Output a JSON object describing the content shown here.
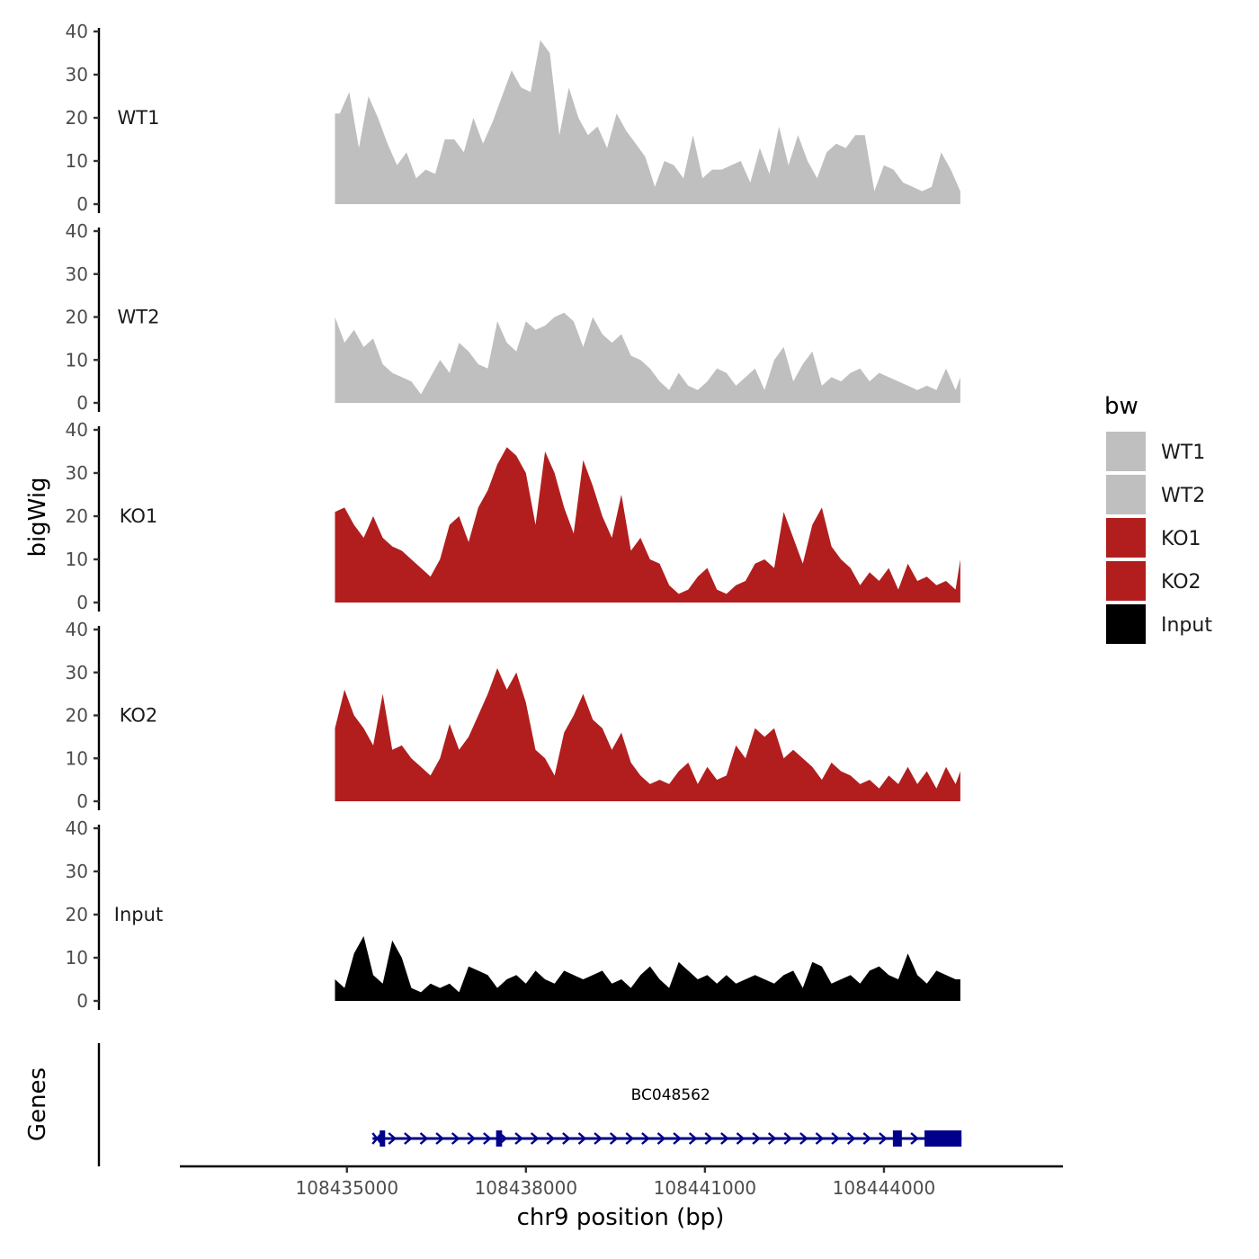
{
  "chart_data": {
    "type": "area",
    "xlabel": "chr9 position (bp)",
    "ylabel": "bigWig",
    "genes_label": "Genes",
    "xlim": [
      108432200,
      108447000
    ],
    "x_ticks": [
      108435000,
      108438000,
      108441000,
      108444000
    ],
    "x_tick_labels": [
      "108435000",
      "108438000",
      "108441000",
      "108444000"
    ],
    "y_range": [
      0,
      40
    ],
    "y_ticks": [
      0,
      10,
      20,
      30,
      40
    ],
    "y_tick_labels": [
      "0",
      "10",
      "20",
      "30",
      "40"
    ],
    "legend": {
      "title": "bw",
      "entries": [
        {
          "label": "WT1",
          "color": "#bfbfbf"
        },
        {
          "label": "WT2",
          "color": "#bfbfbf"
        },
        {
          "label": "KO1",
          "color": "#b21e1e"
        },
        {
          "label": "KO2",
          "color": "#b21e1e"
        },
        {
          "label": "Input",
          "color": "#000000"
        }
      ]
    },
    "series": [
      {
        "name": "WT1",
        "color": "#bfbfbf",
        "x": [
          108434800,
          108434880,
          108435040,
          108435200,
          108435360,
          108435520,
          108435680,
          108435840,
          108436000,
          108436160,
          108436320,
          108436480,
          108436640,
          108436800,
          108436960,
          108437120,
          108437280,
          108437440,
          108437600,
          108437760,
          108437920,
          108438080,
          108438240,
          108438400,
          108438560,
          108438720,
          108438880,
          108439040,
          108439200,
          108439360,
          108439520,
          108439680,
          108439840,
          108440000,
          108440160,
          108440320,
          108440480,
          108440640,
          108440800,
          108440960,
          108441120,
          108441280,
          108441440,
          108441600,
          108441760,
          108441920,
          108442080,
          108442240,
          108442400,
          108442560,
          108442720,
          108442880,
          108443040,
          108443200,
          108443360,
          108443520,
          108443680,
          108443840,
          108444000,
          108444160,
          108444320,
          108444480,
          108444640,
          108444800,
          108444960,
          108445120,
          108445280
        ],
        "values": [
          21,
          21,
          26,
          13,
          25,
          20,
          14,
          9,
          12,
          6,
          8,
          7,
          15,
          15,
          12,
          20,
          14,
          19,
          25,
          31,
          27,
          26,
          38,
          35,
          16,
          27,
          20,
          16,
          18,
          13,
          21,
          17,
          14,
          11,
          4,
          10,
          9,
          6,
          16,
          6,
          8,
          8,
          9,
          10,
          5,
          13,
          7,
          18,
          9,
          16,
          10,
          6,
          12,
          14,
          13,
          16,
          16,
          3,
          9,
          8,
          5,
          4,
          3,
          4,
          12,
          8,
          3
        ]
      },
      {
        "name": "WT2",
        "color": "#bfbfbf",
        "x": [
          108434800,
          108434960,
          108435120,
          108435280,
          108435440,
          108435600,
          108435760,
          108435920,
          108436080,
          108436240,
          108436400,
          108436560,
          108436720,
          108436880,
          108437040,
          108437200,
          108437360,
          108437520,
          108437680,
          108437840,
          108438000,
          108438160,
          108438320,
          108438480,
          108438640,
          108438800,
          108438960,
          108439120,
          108439280,
          108439440,
          108439600,
          108439760,
          108439920,
          108440080,
          108440240,
          108440400,
          108440560,
          108440720,
          108440880,
          108441040,
          108441200,
          108441360,
          108441520,
          108441680,
          108441840,
          108442000,
          108442160,
          108442320,
          108442480,
          108442640,
          108442800,
          108442960,
          108443120,
          108443280,
          108443440,
          108443600,
          108443760,
          108443920,
          108444080,
          108444240,
          108444400,
          108444560,
          108444720,
          108444880,
          108445040,
          108445200,
          108445280
        ],
        "values": [
          20,
          14,
          17,
          13,
          15,
          9,
          7,
          6,
          5,
          2,
          6,
          10,
          7,
          14,
          12,
          9,
          8,
          19,
          14,
          12,
          19,
          17,
          18,
          20,
          21,
          19,
          13,
          20,
          16,
          14,
          16,
          11,
          10,
          8,
          5,
          3,
          7,
          4,
          3,
          5,
          8,
          7,
          4,
          6,
          8,
          3,
          10,
          13,
          5,
          9,
          12,
          4,
          6,
          5,
          7,
          8,
          5,
          7,
          6,
          5,
          4,
          3,
          4,
          3,
          8,
          3,
          6
        ]
      },
      {
        "name": "KO1",
        "color": "#b21e1e",
        "x": [
          108434800,
          108434960,
          108435120,
          108435280,
          108435440,
          108435600,
          108435760,
          108435920,
          108436080,
          108436240,
          108436400,
          108436560,
          108436720,
          108436880,
          108437040,
          108437200,
          108437360,
          108437520,
          108437680,
          108437840,
          108438000,
          108438160,
          108438320,
          108438480,
          108438640,
          108438800,
          108438960,
          108439120,
          108439280,
          108439440,
          108439600,
          108439760,
          108439920,
          108440080,
          108440240,
          108440400,
          108440560,
          108440720,
          108440880,
          108441040,
          108441200,
          108441360,
          108441520,
          108441680,
          108441840,
          108442000,
          108442160,
          108442320,
          108442480,
          108442640,
          108442800,
          108442960,
          108443120,
          108443280,
          108443440,
          108443600,
          108443760,
          108443920,
          108444080,
          108444240,
          108444400,
          108444560,
          108444720,
          108444880,
          108445040,
          108445200,
          108445280
        ],
        "values": [
          21,
          22,
          18,
          15,
          20,
          15,
          13,
          12,
          10,
          8,
          6,
          10,
          18,
          20,
          14,
          22,
          26,
          32,
          36,
          34,
          30,
          18,
          35,
          30,
          22,
          16,
          33,
          27,
          20,
          15,
          25,
          12,
          15,
          10,
          9,
          4,
          2,
          3,
          6,
          8,
          3,
          2,
          4,
          5,
          9,
          10,
          8,
          21,
          15,
          9,
          18,
          22,
          13,
          10,
          8,
          4,
          7,
          5,
          8,
          3,
          9,
          5,
          6,
          4,
          5,
          3,
          10
        ]
      },
      {
        "name": "KO2",
        "color": "#b21e1e",
        "x": [
          108434800,
          108434960,
          108435120,
          108435280,
          108435440,
          108435600,
          108435760,
          108435920,
          108436080,
          108436240,
          108436400,
          108436560,
          108436720,
          108436880,
          108437040,
          108437200,
          108437360,
          108437520,
          108437680,
          108437840,
          108438000,
          108438160,
          108438320,
          108438480,
          108438640,
          108438800,
          108438960,
          108439120,
          108439280,
          108439440,
          108439600,
          108439760,
          108439920,
          108440080,
          108440240,
          108440400,
          108440560,
          108440720,
          108440880,
          108441040,
          108441200,
          108441360,
          108441520,
          108441680,
          108441840,
          108442000,
          108442160,
          108442320,
          108442480,
          108442640,
          108442800,
          108442960,
          108443120,
          108443280,
          108443440,
          108443600,
          108443760,
          108443920,
          108444080,
          108444240,
          108444400,
          108444560,
          108444720,
          108444880,
          108445040,
          108445200,
          108445280
        ],
        "values": [
          17,
          26,
          20,
          17,
          13,
          25,
          12,
          13,
          10,
          8,
          6,
          10,
          18,
          12,
          15,
          20,
          25,
          31,
          26,
          30,
          23,
          12,
          10,
          6,
          16,
          20,
          25,
          19,
          17,
          12,
          16,
          9,
          6,
          4,
          5,
          4,
          7,
          9,
          4,
          8,
          5,
          6,
          13,
          10,
          17,
          15,
          17,
          10,
          12,
          10,
          8,
          5,
          9,
          7,
          6,
          4,
          5,
          3,
          6,
          4,
          8,
          4,
          7,
          3,
          8,
          4,
          7
        ]
      },
      {
        "name": "Input",
        "color": "#000000",
        "x": [
          108434800,
          108434960,
          108435120,
          108435280,
          108435440,
          108435600,
          108435760,
          108435920,
          108436080,
          108436240,
          108436400,
          108436560,
          108436720,
          108436880,
          108437040,
          108437200,
          108437360,
          108437520,
          108437680,
          108437840,
          108438000,
          108438160,
          108438320,
          108438480,
          108438640,
          108438800,
          108438960,
          108439120,
          108439280,
          108439440,
          108439600,
          108439760,
          108439920,
          108440080,
          108440240,
          108440400,
          108440560,
          108440720,
          108440880,
          108441040,
          108441200,
          108441360,
          108441520,
          108441680,
          108441840,
          108442000,
          108442160,
          108442320,
          108442480,
          108442640,
          108442800,
          108442960,
          108443120,
          108443280,
          108443440,
          108443600,
          108443760,
          108443920,
          108444080,
          108444240,
          108444400,
          108444560,
          108444720,
          108444880,
          108445040,
          108445200,
          108445280
        ],
        "values": [
          5,
          3,
          11,
          15,
          6,
          4,
          14,
          10,
          3,
          2,
          4,
          3,
          4,
          2,
          8,
          7,
          6,
          3,
          5,
          6,
          4,
          7,
          5,
          4,
          7,
          6,
          5,
          6,
          7,
          4,
          5,
          3,
          6,
          8,
          5,
          3,
          9,
          7,
          5,
          6,
          4,
          6,
          4,
          5,
          6,
          5,
          4,
          6,
          7,
          3,
          9,
          8,
          4,
          5,
          6,
          4,
          7,
          8,
          6,
          5,
          11,
          6,
          4,
          7,
          6,
          5,
          5
        ]
      }
    ],
    "genes": [
      {
        "name": "BC048562",
        "start": 108435550,
        "end": 108445300,
        "exons": [
          [
            108435550,
            108435630
          ],
          [
            108437500,
            108437600
          ],
          [
            108444150,
            108444300
          ],
          [
            108444680,
            108445300
          ]
        ]
      }
    ]
  }
}
